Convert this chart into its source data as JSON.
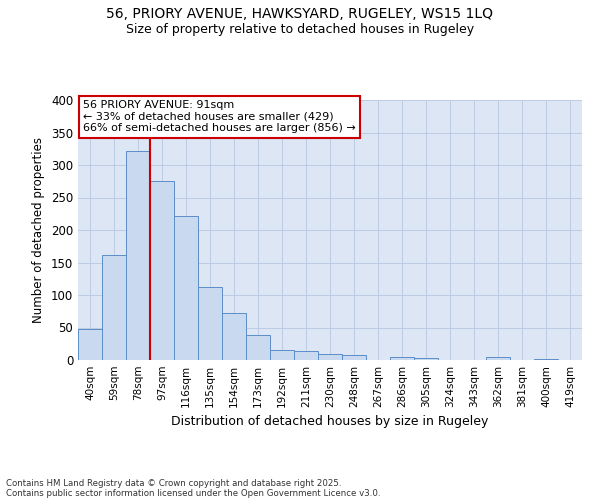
{
  "title_line1": "56, PRIORY AVENUE, HAWKSYARD, RUGELEY, WS15 1LQ",
  "title_line2": "Size of property relative to detached houses in Rugeley",
  "xlabel": "Distribution of detached houses by size in Rugeley",
  "ylabel": "Number of detached properties",
  "categories": [
    "40sqm",
    "59sqm",
    "78sqm",
    "97sqm",
    "116sqm",
    "135sqm",
    "154sqm",
    "173sqm",
    "192sqm",
    "211sqm",
    "230sqm",
    "248sqm",
    "267sqm",
    "286sqm",
    "305sqm",
    "324sqm",
    "343sqm",
    "362sqm",
    "381sqm",
    "400sqm",
    "419sqm"
  ],
  "values": [
    48,
    161,
    322,
    275,
    222,
    112,
    72,
    38,
    15,
    14,
    9,
    7,
    0,
    4,
    3,
    0,
    0,
    4,
    0,
    2,
    0
  ],
  "bar_color": "#c8d9f0",
  "bar_edge_color": "#5b8dc8",
  "grid_color": "#b8c8e0",
  "background_color": "#dce6f5",
  "vline_x": 3.0,
  "vline_color": "#cc0000",
  "annotation_text": "56 PRIORY AVENUE: 91sqm\n← 33% of detached houses are smaller (429)\n66% of semi-detached houses are larger (856) →",
  "annotation_box_color": "#ffffff",
  "annotation_box_edge": "#cc0000",
  "footer_line1": "Contains HM Land Registry data © Crown copyright and database right 2025.",
  "footer_line2": "Contains public sector information licensed under the Open Government Licence v3.0.",
  "ylim": [
    0,
    400
  ],
  "yticks": [
    0,
    50,
    100,
    150,
    200,
    250,
    300,
    350,
    400
  ]
}
